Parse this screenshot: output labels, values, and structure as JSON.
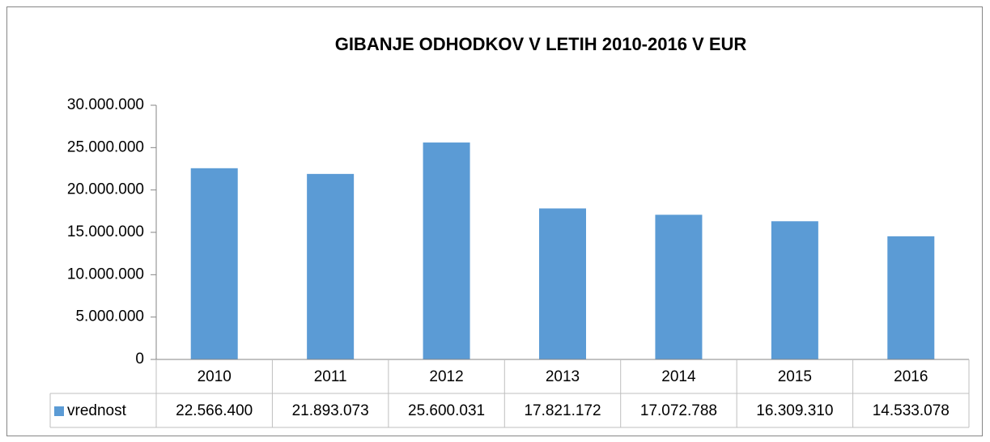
{
  "chart_data": {
    "type": "bar",
    "title": "GIBANJE ODHODKOV V LETIH 2010-2016 V EUR",
    "categories": [
      "2010",
      "2011",
      "2012",
      "2013",
      "2014",
      "2015",
      "2016"
    ],
    "series": [
      {
        "name": "vrednost",
        "color": "#5b9bd5",
        "values": [
          22566400,
          21893073,
          25600031,
          17821172,
          17072788,
          16309310,
          14533078
        ],
        "value_labels": [
          "22.566.400",
          "21.893.073",
          "25.600.031",
          "17.821.172",
          "17.072.788",
          "16.309.310",
          "14.533.078"
        ]
      }
    ],
    "ylim": [
      0,
      30000000
    ],
    "yticks": [
      0,
      {
        "value": 5000000,
        "label": "5.000.000"
      },
      {
        "value": 10000000,
        "label": "10.000.000"
      },
      {
        "value": 15000000,
        "label": "15.000.000"
      },
      {
        "value": 20000000,
        "label": "20.000.000"
      },
      {
        "value": 25000000,
        "label": "25.000.000"
      },
      {
        "value": 30000000,
        "label": "30.000.000"
      }
    ],
    "grid": false
  }
}
